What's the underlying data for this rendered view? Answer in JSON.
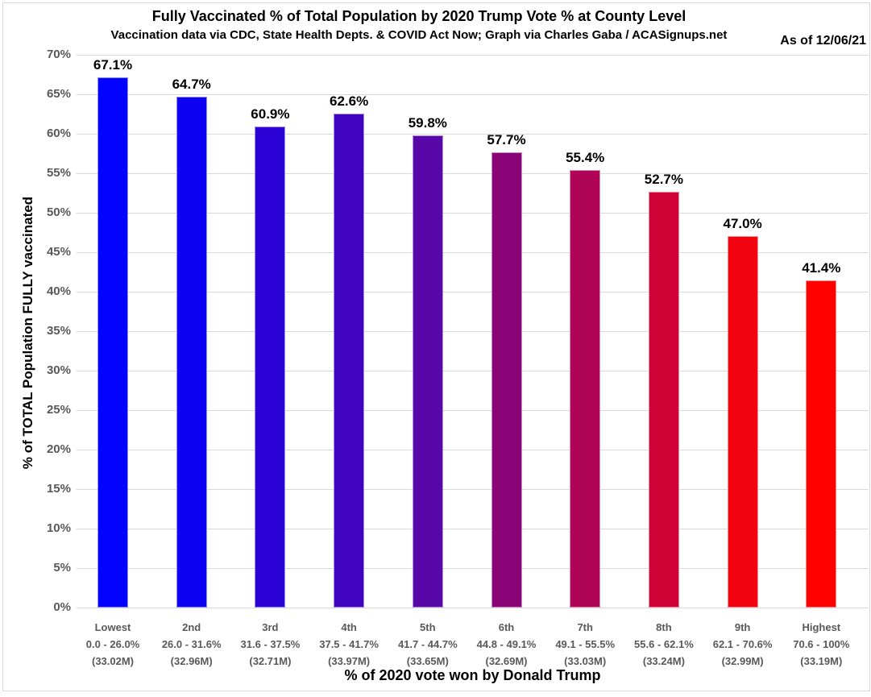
{
  "chart_data": {
    "type": "bar",
    "title": "Fully Vaccinated % of Total Population by 2020 Trump Vote % at County Level",
    "subtitle": "Vaccination data via CDC, State Health Depts. & COVID Act Now; Graph via Charles Gaba / ACASignups.net",
    "as_of_label": "As of 12/06/21",
    "xlabel": "% of 2020 vote won by Donald Trump",
    "ylabel": "% of TOTAL Population FULLY vaccinated",
    "ylim": [
      0,
      70
    ],
    "ytick_step": 5,
    "ytick_labels": [
      "0%",
      "5%",
      "10%",
      "15%",
      "20%",
      "25%",
      "30%",
      "35%",
      "40%",
      "45%",
      "50%",
      "55%",
      "60%",
      "65%",
      "70%"
    ],
    "grid": true,
    "legend": "none",
    "categories": [
      "Lowest",
      "2nd",
      "3rd",
      "4th",
      "5th",
      "6th",
      "7th",
      "8th",
      "9th",
      "Highest"
    ],
    "category_ranges": [
      "0.0 - 26.0%",
      "26.0 - 31.6%",
      "31.6 - 37.5%",
      "37.5 - 41.7%",
      "41.7 - 44.7%",
      "44.8 - 49.1%",
      "49.1 - 55.5%",
      "55.6 - 62.1%",
      "62.1 - 70.6%",
      "70.6 - 100%"
    ],
    "category_populations": [
      "(33.02M)",
      "(32.96M)",
      "(32.71M)",
      "(33.97M)",
      "(33.65M)",
      "(32.69M)",
      "(33.03M)",
      "(33.24M)",
      "(32.99M)",
      "(33.19M)"
    ],
    "values": [
      67.1,
      64.7,
      60.9,
      62.6,
      59.8,
      57.7,
      55.4,
      52.7,
      47.0,
      41.4
    ],
    "value_labels": [
      "67.1%",
      "64.7%",
      "60.9%",
      "62.6%",
      "59.8%",
      "57.7%",
      "55.4%",
      "52.7%",
      "47.0%",
      "41.4%"
    ],
    "bar_colors": [
      "#0202FF",
      "#0D02F2",
      "#2B02D5",
      "#4003BF",
      "#5807A8",
      "#8A0478",
      "#B00556",
      "#CE0234",
      "#F20310",
      "#FF0200"
    ],
    "gridline_color": "#d9d9d9",
    "tick_label_color": "#595959"
  }
}
